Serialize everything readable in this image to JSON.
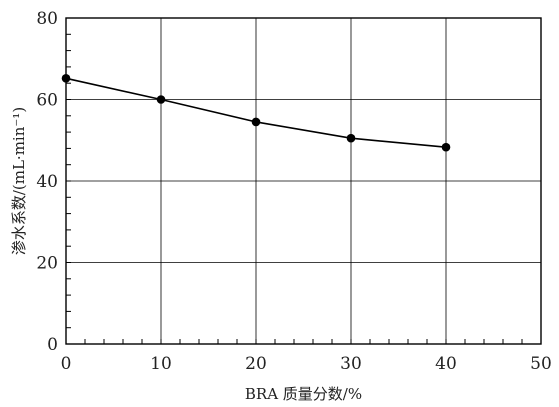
{
  "chart_data": {
    "type": "line",
    "title": "",
    "xlabel": "BRA 质量分数/%",
    "ylabel": "渗水系数/(mL·min⁻¹)",
    "xlim": [
      0,
      50
    ],
    "ylim": [
      0,
      80
    ],
    "x_ticks": [
      0,
      10,
      20,
      30,
      40,
      50
    ],
    "y_ticks": [
      0,
      20,
      40,
      60,
      80
    ],
    "grid": true,
    "legend": "none",
    "series": [
      {
        "x": [
          0,
          10,
          20,
          30,
          40
        ],
        "values": [
          65.2,
          60.0,
          54.5,
          50.5,
          48.3
        ],
        "color": "#000000",
        "marker": "circle"
      }
    ]
  }
}
